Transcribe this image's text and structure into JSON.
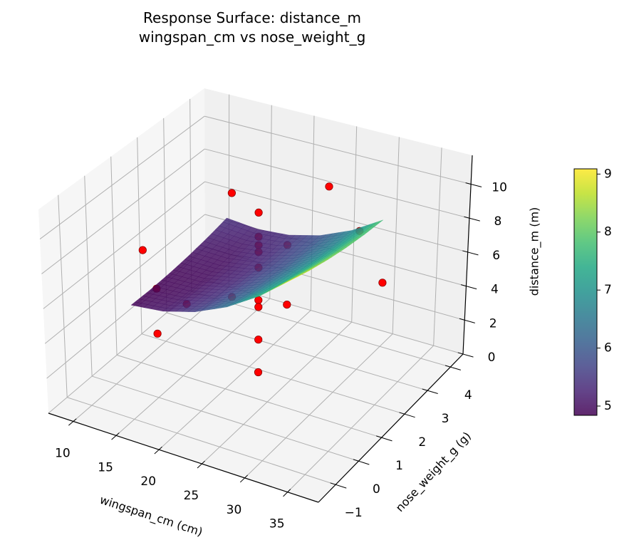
{
  "chart_data": {
    "type": "surface3d",
    "title_line1": "Response Surface: distance_m",
    "title_line2": "wingspan_cm vs nose_weight_g",
    "xlabel": "wingspan_cm (cm)",
    "ylabel": "nose_weight_g (g)",
    "zlabel": "distance_m (m)",
    "xlim": [
      7.1,
      38.6
    ],
    "ylim": [
      -1.75,
      4.55
    ],
    "zlim": [
      0,
      11.7
    ],
    "xticks": [
      10,
      15,
      20,
      25,
      30,
      35
    ],
    "yticks": [
      -1,
      0,
      1,
      2,
      3,
      4
    ],
    "zticks": [
      0,
      2,
      4,
      6,
      8,
      10
    ],
    "xtick_labels": [
      "10",
      "15",
      "20",
      "25",
      "30",
      "35"
    ],
    "ytick_labels": [
      "−1",
      "0",
      "1",
      "2",
      "3",
      "4"
    ],
    "ztick_labels": [
      "0",
      "2",
      "4",
      "6",
      "8",
      "10"
    ],
    "grid": true,
    "surface": {
      "colormap": "viridis",
      "alpha": 0.85,
      "x": [
        12,
        15.7,
        19.4,
        23.1,
        26.8,
        30.5
      ],
      "y": [
        0,
        0.76,
        1.52,
        2.28,
        3.04,
        3.8
      ],
      "z": [
        [
          4.9,
          5.1,
          5.62,
          6.45,
          7.61,
          9.09
        ],
        [
          4.87,
          5.0,
          5.45,
          6.21,
          7.3,
          8.7
        ],
        [
          4.91,
          4.96,
          5.34,
          6.03,
          7.05,
          8.38
        ],
        [
          5.01,
          4.99,
          5.29,
          5.92,
          6.86,
          8.12
        ],
        [
          5.17,
          5.08,
          5.32,
          5.87,
          6.74,
          7.93
        ],
        [
          5.4,
          5.24,
          5.4,
          5.88,
          6.68,
          7.8
        ]
      ]
    },
    "scatter": {
      "color": "#ff0000",
      "edge_color": "#8b0000",
      "points": [
        [
          22.5,
          1.5,
          10.0
        ],
        [
          22.5,
          1.5,
          8.6
        ],
        [
          22.5,
          1.5,
          8.1
        ],
        [
          22.5,
          1.5,
          7.7
        ],
        [
          22.5,
          1.5,
          6.8
        ],
        [
          22.5,
          1.5,
          4.9
        ],
        [
          22.5,
          1.5,
          4.5
        ],
        [
          22.5,
          1.5,
          2.6
        ],
        [
          22.5,
          1.5,
          0.7
        ],
        [
          15,
          3,
          8.3
        ],
        [
          15,
          3,
          2.1
        ],
        [
          30,
          3,
          8.1
        ],
        [
          30,
          0,
          11.0
        ],
        [
          30,
          0,
          7.6
        ],
        [
          15,
          0,
          6.3
        ],
        [
          15,
          0,
          3.7
        ],
        [
          12,
          0.5,
          7.5
        ],
        [
          17,
          0.5,
          5.1
        ],
        [
          23.5,
          4,
          8.6
        ],
        [
          35,
          2.2,
          6.8
        ]
      ]
    },
    "colorbar": {
      "range": [
        4.84,
        9.09
      ],
      "ticks": [
        5,
        6,
        7,
        8,
        9
      ],
      "tick_labels": [
        "5",
        "6",
        "7",
        "8",
        "9"
      ]
    },
    "colors": {
      "grid": "#b0b0b0",
      "pane_left": "#f6f6f6",
      "pane_back": "#f0f0f0",
      "pane_floor": "#f4f4f4",
      "axis": "#000000"
    }
  }
}
